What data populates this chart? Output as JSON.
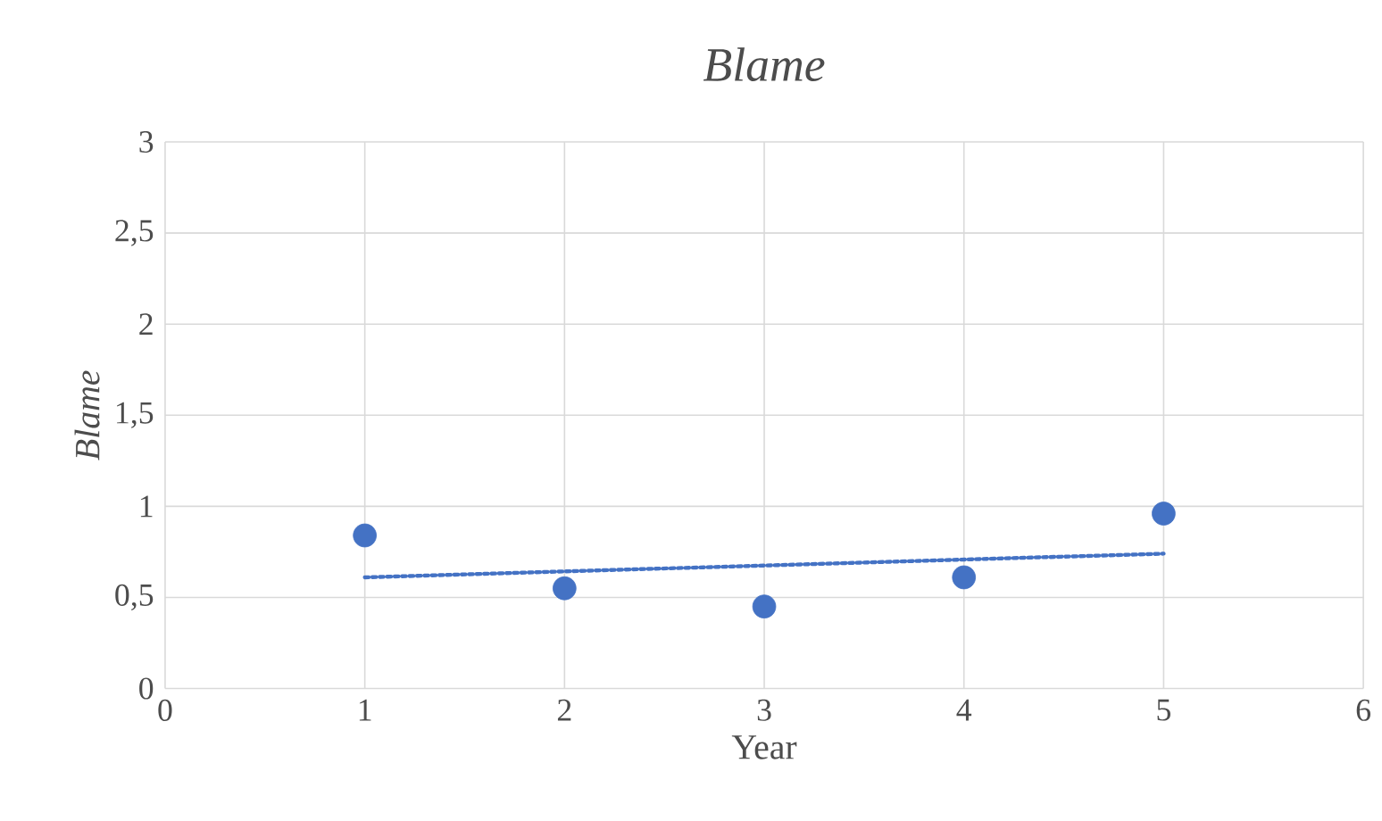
{
  "chart_data": {
    "type": "scatter",
    "title": "*Blame*",
    "xlabel": "Year",
    "ylabel": "*Blame*",
    "x": [
      1,
      2,
      3,
      4,
      5
    ],
    "series": [
      {
        "color": "#4472c4",
        "values": [
          0.84,
          0.55,
          0.45,
          0.61,
          0.96
        ],
        "marker": "circle"
      },
      {
        "type": "line",
        "color": "#4472c4",
        "x": [
          1,
          5
        ],
        "values": [
          0.61,
          0.74
        ],
        "line_style": "dotted"
      }
    ],
    "xlim": [
      0,
      6
    ],
    "ylim": [
      0,
      3
    ],
    "xticks": [
      0,
      1,
      2,
      3,
      4,
      5,
      6
    ],
    "yticks": [
      0,
      {
        "value": 0.5,
        "label": "0,5"
      },
      1,
      {
        "value": 1.5,
        "label": "1,5"
      },
      2,
      {
        "value": 2.5,
        "label": "2,5"
      },
      3
    ],
    "grid": true
  }
}
